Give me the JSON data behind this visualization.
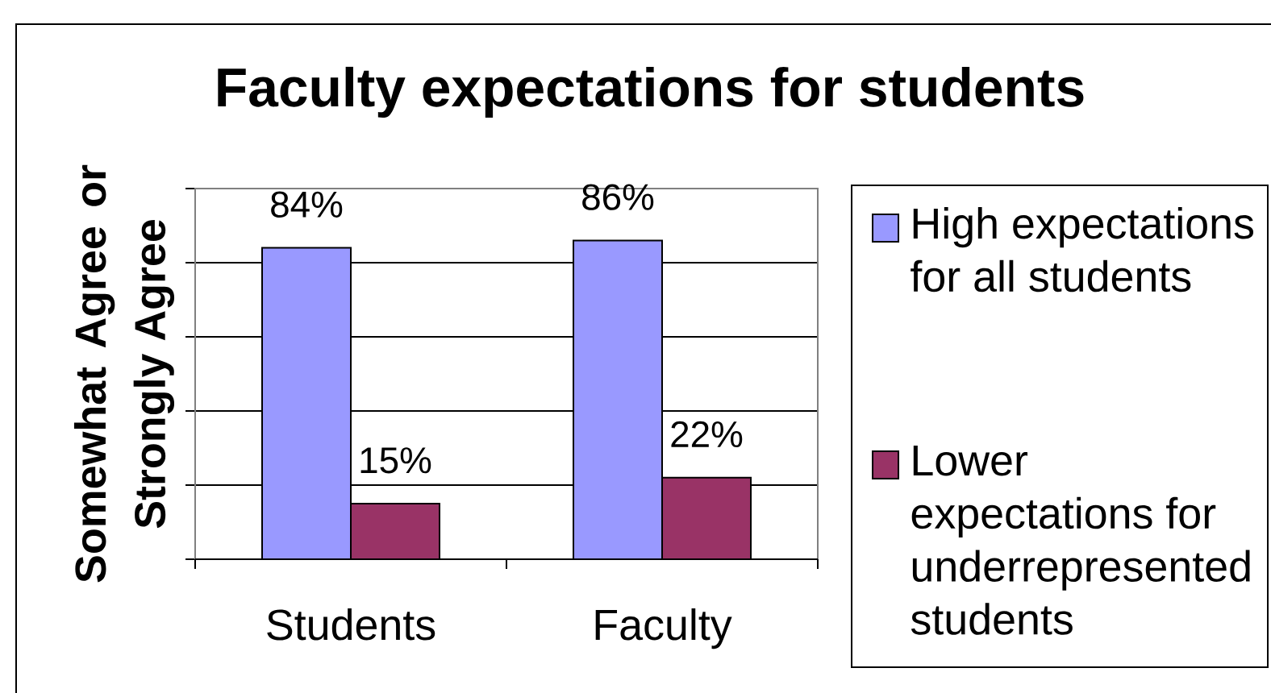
{
  "chart_data": {
    "type": "bar",
    "title": "Faculty expectations for students",
    "ylabel": "Somewhat Agree or Strongly Agree",
    "categories": [
      "Students",
      "Faculty"
    ],
    "series": [
      {
        "name": "High expectations for all students",
        "color": "#9999ff",
        "values": [
          84,
          86
        ],
        "value_labels": [
          "84%",
          "86%"
        ]
      },
      {
        "name": "Lower expectations for underrepresented students",
        "color": "#993366",
        "values": [
          15,
          22
        ],
        "value_labels": [
          "15%",
          "22%"
        ]
      }
    ],
    "ylim": [
      0,
      100
    ],
    "yticks": [
      {
        "value": 0,
        "label": null
      },
      {
        "value": 20,
        "label": null
      },
      {
        "value": 40,
        "label": null
      },
      {
        "value": 60,
        "label": null
      },
      {
        "value": 80,
        "label": null
      },
      {
        "value": 100,
        "label": null
      }
    ],
    "grid": "y",
    "legend": "right",
    "tick_labels": "x"
  }
}
